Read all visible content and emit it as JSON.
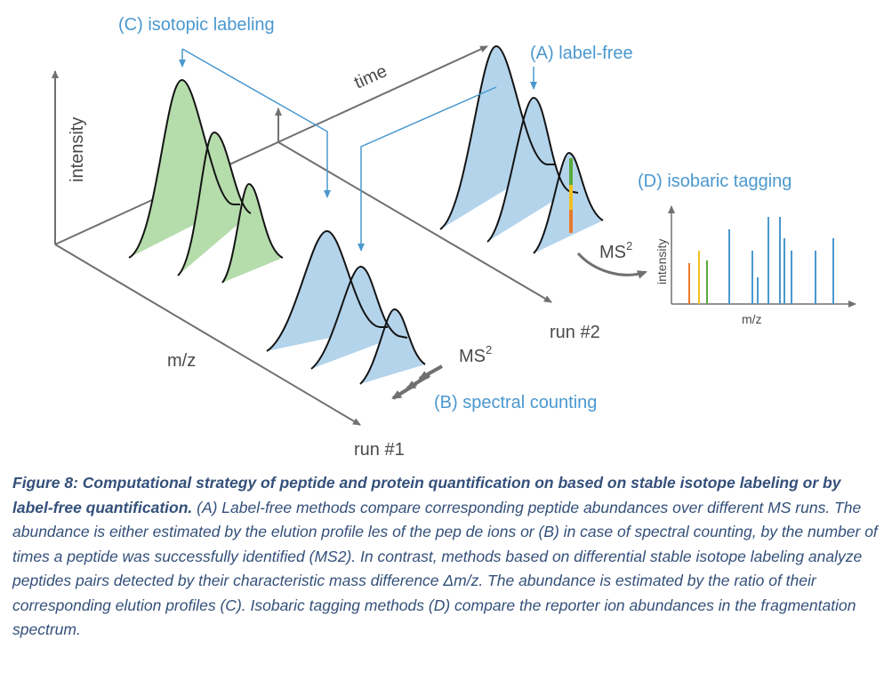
{
  "labels": {
    "isotopic_labeling": "(C) isotopic labeling",
    "label_free": "(A) label-free",
    "isobaric_tagging": "(D) isobaric tagging",
    "spectral_counting": "(B) spectral counting",
    "time": "time",
    "intensity": "intensity",
    "mz": "m/z",
    "run1": "run #1",
    "run2": "run #2",
    "ms2_base": "MS",
    "ms2_sup": "2",
    "inset_intensity": "intensity",
    "inset_mz": "m/z"
  },
  "caption": {
    "title": "Figure 8: Computational strategy of peptide and protein quantification on based on stable isotope labeling or by label-free quantification.",
    "body": " (A) Label-free methods compare corresponding peptide abundances over different MS runs. The abundance is either estimated by the elution profile les of the pep de ions or (B) in case of spectral counting, by the number of times a peptide was successfully identified (MS2). In contrast, methods based on differential stable isotope labeling analyze peptides pairs detected by their characteristic mass difference Δm/z. The abundance is estimated by the ratio of their corresponding elution profiles (C). Isobaric tagging methods (D) compare the reporter ion abundances in the fragmentation spectrum."
  },
  "colors": {
    "green_fill": "#b5dcab",
    "blue_fill": "#b4d4ec",
    "axis": "#707070",
    "arrow_blue": "#4a98cf",
    "caption": "#34507a",
    "reporter_orange": "#e87a2c",
    "reporter_yellow": "#f0c020",
    "reporter_green": "#5aaa3c"
  }
}
